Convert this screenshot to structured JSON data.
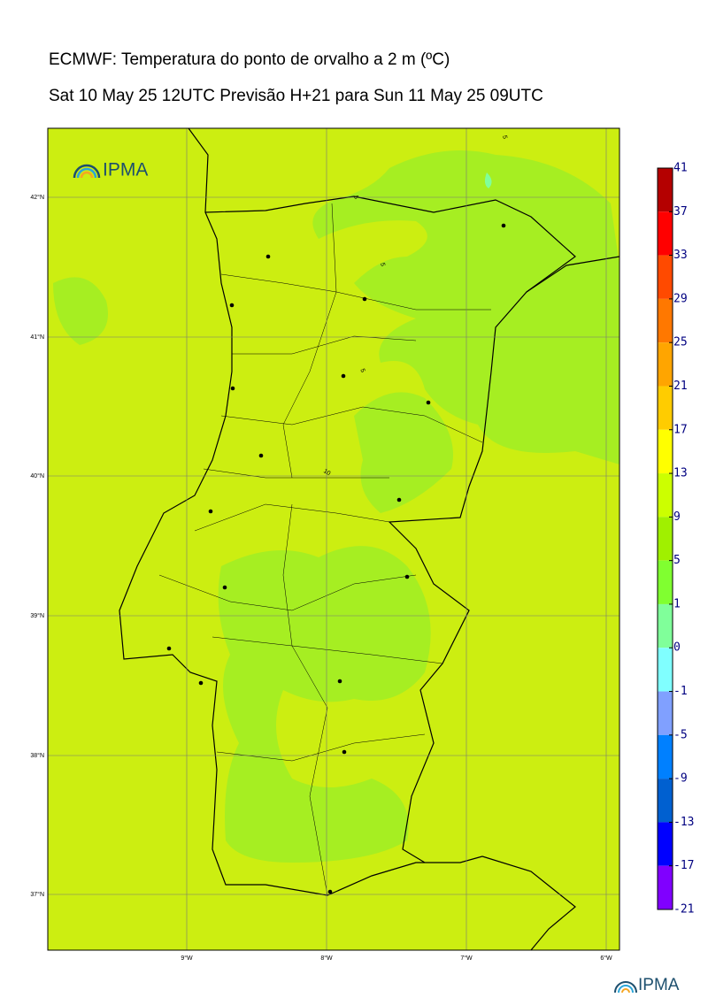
{
  "header": {
    "title": "ECMWF: Temperatura do ponto de orvalho a 2 m (ºC)",
    "subtitle": "Sat 10 May 25 12UTC Previsão H+21 para Sun 11 May 25 09UTC"
  },
  "map": {
    "logo": "IPMA",
    "lat_labels": [
      "42°N",
      "41°N",
      "40°N",
      "39°N",
      "38°N",
      "37°N"
    ],
    "lon_labels": [
      "9°W",
      "8°W",
      "7°W",
      "6°W"
    ],
    "contour_labels": [
      "5",
      "5",
      "5",
      "5",
      "10"
    ]
  },
  "colorbar": {
    "ticks": [
      41,
      37,
      33,
      29,
      25,
      21,
      17,
      13,
      9,
      5,
      1,
      0,
      -1,
      -5,
      -9,
      -13,
      -17,
      -21
    ],
    "colors": [
      "#b40000",
      "#ff0000",
      "#ff4a00",
      "#ff7800",
      "#ffa500",
      "#ffcc00",
      "#ffff00",
      "#ccff00",
      "#a0f000",
      "#80ff30",
      "#80ff9a",
      "#80ffff",
      "#80a0ff",
      "#0080ff",
      "#0060d0",
      "#0000ff",
      "#8000ff"
    ]
  },
  "footer": {
    "logo": "IPMA"
  }
}
